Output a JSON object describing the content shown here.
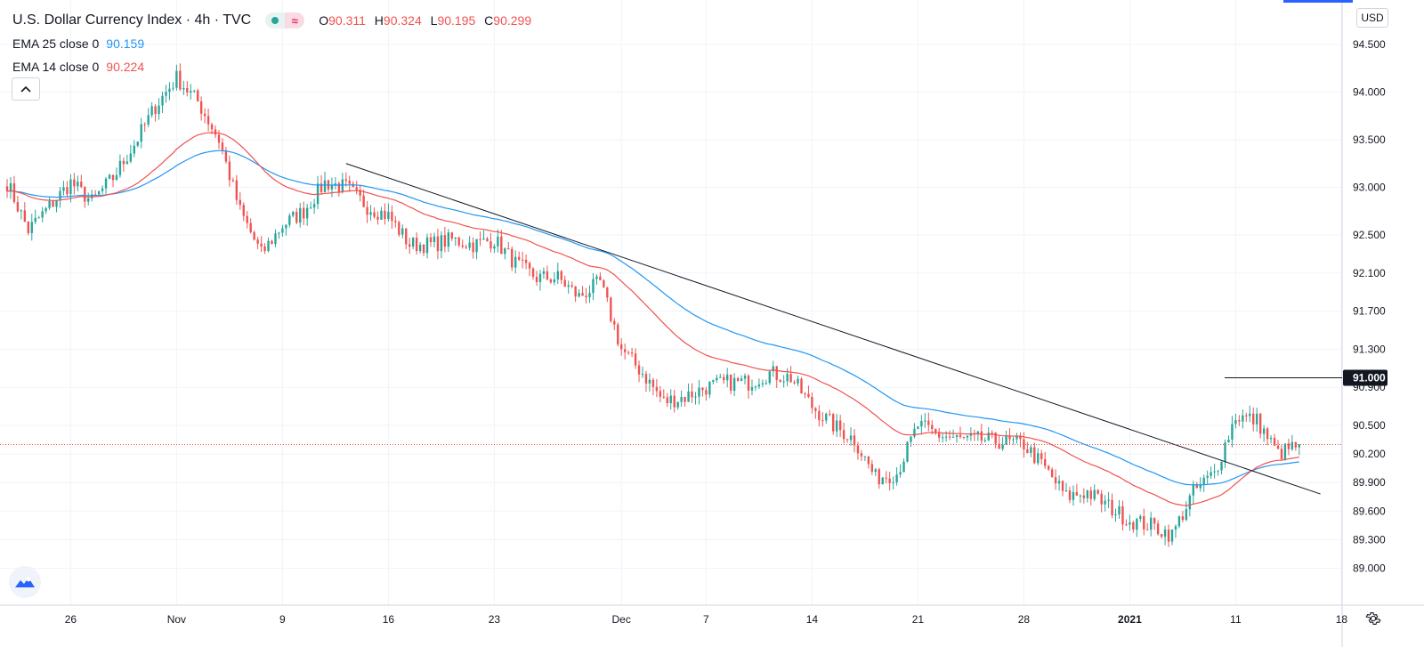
{
  "header": {
    "title": "U.S. Dollar Currency Index · 4h · TVC",
    "ohlc": [
      {
        "label": "O",
        "value": "90.311"
      },
      {
        "label": "H",
        "value": "90.324"
      },
      {
        "label": "L",
        "value": "90.195"
      },
      {
        "label": "C",
        "value": "90.299"
      }
    ],
    "status_icon": "market-open-dot-icon",
    "approx_icon": "approx-icon"
  },
  "indicators": [
    {
      "name": "EMA 25 close 0",
      "value": "90.159",
      "color": "#2196f3"
    },
    {
      "name": "EMA 14 close 0",
      "value": "90.224",
      "color": "#ef5350"
    }
  ],
  "controls": {
    "collapse_icon": "chevron-up-icon",
    "currency": "USD",
    "logo_icon": "tradingview-logo-icon",
    "settings_icon": "gear-icon"
  },
  "colors": {
    "up": "#26a69a",
    "down": "#ef5350",
    "ema25": "#2196f3",
    "ema14": "#ef5350",
    "trendline": "#131722",
    "grid": "#f0f3fa",
    "price_line": "#ef5350"
  },
  "chart_data": {
    "type": "candlestick",
    "title": "U.S. Dollar Currency Index",
    "interval": "4h",
    "source": "TVC",
    "currency": "USD",
    "yaxis_position": "right",
    "ylim": [
      88.75,
      94.75
    ],
    "y_ticks": [
      "94.500",
      "94.000",
      "93.500",
      "93.000",
      "92.500",
      "92.100",
      "91.700",
      "91.300",
      "90.900",
      "90.500",
      "90.200",
      "89.900",
      "89.600",
      "89.300",
      "89.000"
    ],
    "x_ticks": [
      "26",
      "Nov",
      "9",
      "16",
      "23",
      "Dec",
      "7",
      "14",
      "21",
      "28",
      "2021",
      "11",
      "18"
    ],
    "grid": true,
    "current_close": 90.299,
    "highlighted_level": {
      "value": "91.000",
      "price": 91.0
    },
    "trendline": {
      "from": {
        "date": "Nov 12",
        "price": 93.25
      },
      "to": {
        "date": "Jan 15",
        "price": 89.78
      }
    },
    "series": [
      {
        "name": "EMA 25 close 0",
        "last": 90.159
      },
      {
        "name": "EMA 14 close 0",
        "last": 90.224
      }
    ],
    "close_path": [
      [
        "Oct 21",
        93.05
      ],
      [
        "Oct 22",
        92.55
      ],
      [
        "Oct 23",
        92.8
      ],
      [
        "Oct 26",
        93.05
      ],
      [
        "Oct 27",
        92.85
      ],
      [
        "Oct 28",
        93.1
      ],
      [
        "Oct 29",
        93.45
      ],
      [
        "Oct 30",
        93.85
      ],
      [
        "Nov 2",
        94.15
      ],
      [
        "Nov 3",
        93.9
      ],
      [
        "Nov 4",
        93.5
      ],
      [
        "Nov 5",
        92.75
      ],
      [
        "Nov 6",
        92.3
      ],
      [
        "Nov 9",
        92.6
      ],
      [
        "Nov 10",
        92.75
      ],
      [
        "Nov 11",
        93.05
      ],
      [
        "Nov 12",
        93.0
      ],
      [
        "Nov 13",
        92.8
      ],
      [
        "Nov 16",
        92.7
      ],
      [
        "Nov 17",
        92.4
      ],
      [
        "Nov 18",
        92.4
      ],
      [
        "Nov 19",
        92.45
      ],
      [
        "Nov 20",
        92.4
      ],
      [
        "Nov 23",
        92.45
      ],
      [
        "Nov 24",
        92.2
      ],
      [
        "Nov 25",
        92.05
      ],
      [
        "Nov 26",
        92.05
      ],
      [
        "Nov 27",
        91.85
      ],
      [
        "Nov 30",
        92.0
      ],
      [
        "Dec 1",
        91.3
      ],
      [
        "Dec 2",
        91.05
      ],
      [
        "Dec 3",
        90.75
      ],
      [
        "Dec 4",
        90.8
      ],
      [
        "Dec 7",
        90.9
      ],
      [
        "Dec 8",
        90.95
      ],
      [
        "Dec 9",
        90.95
      ],
      [
        "Dec 10",
        91.05
      ],
      [
        "Dec 11",
        91.0
      ],
      [
        "Dec 14",
        90.7
      ],
      [
        "Dec 15",
        90.5
      ],
      [
        "Dec 16",
        90.35
      ],
      [
        "Dec 17",
        89.95
      ],
      [
        "Dec 18",
        90.0
      ],
      [
        "Dec 21",
        90.5
      ],
      [
        "Dec 22",
        90.4
      ],
      [
        "Dec 23",
        90.35
      ],
      [
        "Dec 24",
        90.35
      ],
      [
        "Dec 28",
        90.3
      ],
      [
        "Dec 29",
        90.05
      ],
      [
        "Dec 30",
        89.75
      ],
      [
        "Dec 31",
        89.8
      ],
      [
        "Jan 4",
        89.5
      ],
      [
        "Jan 5",
        89.45
      ],
      [
        "Jan 6",
        89.35
      ],
      [
        "Jan 7",
        89.8
      ],
      [
        "Jan 8",
        90.0
      ],
      [
        "Jan 11",
        90.6
      ],
      [
        "Jan 12",
        90.55
      ],
      [
        "Jan 13",
        90.2
      ],
      [
        "Jan 14",
        90.299
      ]
    ]
  }
}
